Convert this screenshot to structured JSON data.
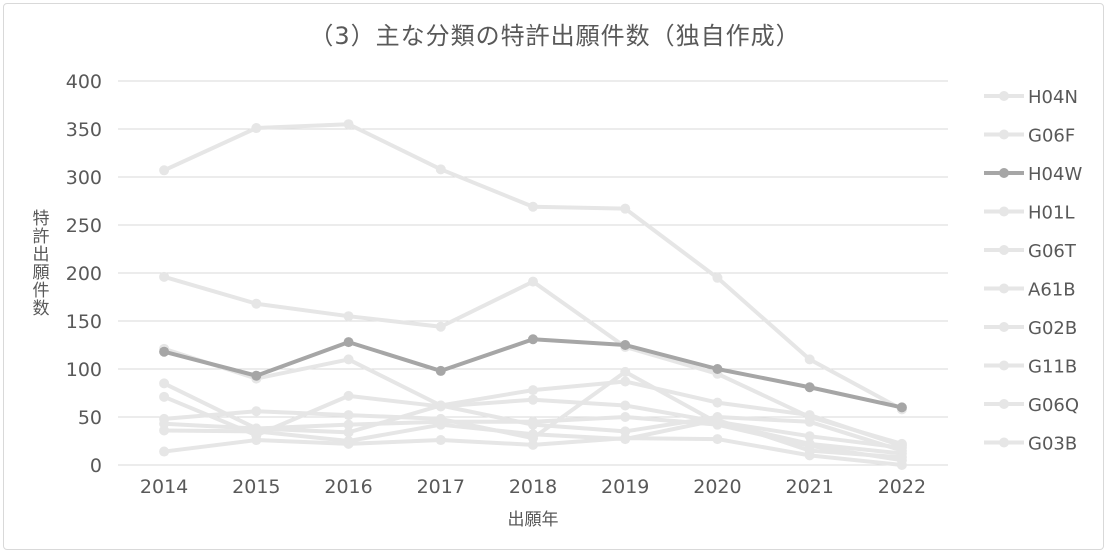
{
  "chart_data": {
    "type": "line",
    "title": "（3）主な分類の特許出願件数（独自作成）",
    "xlabel": "出願年",
    "ylabel": "特許出願件数",
    "ylim": [
      0,
      400
    ],
    "yticks": [
      "0",
      "50",
      "100",
      "150",
      "200",
      "250",
      "300",
      "350",
      "400"
    ],
    "categories": [
      "2014",
      "2015",
      "2016",
      "2017",
      "2018",
      "2019",
      "2020",
      "2021",
      "2022"
    ],
    "grid": true,
    "legend_position": "right",
    "highlight_color": "#a6a6a6",
    "muted_color": "#e6e6e6",
    "series": [
      {
        "name": "H04N",
        "highlight": false,
        "values": [
          307,
          351,
          355,
          308,
          269,
          267,
          195,
          110,
          58
        ]
      },
      {
        "name": "G06F",
        "highlight": false,
        "values": [
          196,
          168,
          155,
          144,
          191,
          123,
          95,
          50,
          22
        ]
      },
      {
        "name": "H04W",
        "highlight": true,
        "values": [
          118,
          93,
          128,
          98,
          131,
          125,
          100,
          81,
          60
        ]
      },
      {
        "name": "H01L",
        "highlight": false,
        "values": [
          121,
          90,
          110,
          62,
          42,
          35,
          50,
          45,
          15
        ]
      },
      {
        "name": "G06T",
        "highlight": false,
        "values": [
          85,
          38,
          34,
          62,
          78,
          87,
          65,
          52,
          20
        ]
      },
      {
        "name": "A61B",
        "highlight": false,
        "values": [
          71,
          31,
          72,
          61,
          68,
          62,
          45,
          30,
          18
        ]
      },
      {
        "name": "G02B",
        "highlight": false,
        "values": [
          48,
          56,
          52,
          48,
          28,
          97,
          44,
          22,
          12
        ]
      },
      {
        "name": "G11B",
        "highlight": false,
        "values": [
          43,
          38,
          42,
          45,
          45,
          50,
          42,
          20,
          5
        ]
      },
      {
        "name": "G06Q",
        "highlight": false,
        "values": [
          36,
          35,
          25,
          42,
          32,
          27,
          47,
          15,
          8
        ]
      },
      {
        "name": "G03B",
        "highlight": false,
        "values": [
          14,
          26,
          22,
          26,
          21,
          28,
          27,
          10,
          0
        ]
      }
    ]
  }
}
